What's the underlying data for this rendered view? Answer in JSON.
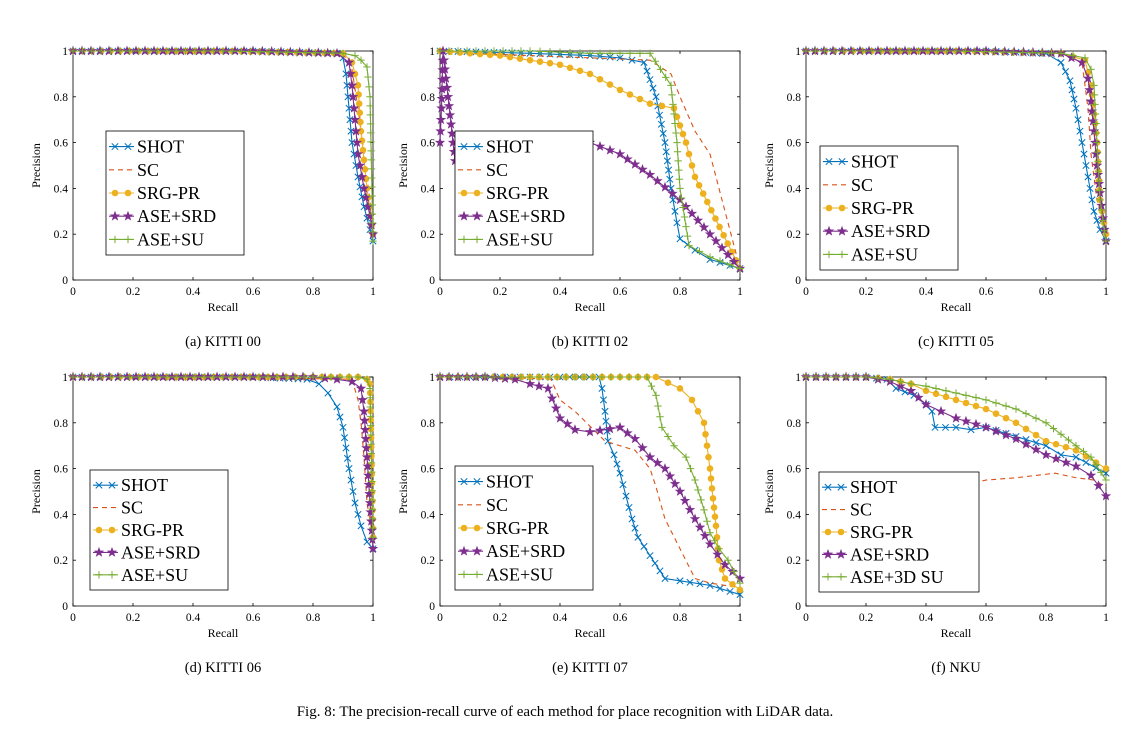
{
  "figure_caption": "Fig. 8: The precision-recall curve of each method for place recognition with LiDAR data.",
  "colors": {
    "SHOT": "#0072BD",
    "SC": "#D95319",
    "SRG-PR": "#EDB120",
    "ASE+SRD": "#7E2F8E",
    "ASE+SU": "#77AC30"
  },
  "chart_data": [
    {
      "type": "line",
      "caption": "(a) KITTI 00",
      "xlabel": "Recall",
      "ylabel": "Precision",
      "xlim": [
        0,
        1
      ],
      "ylim": [
        0,
        1
      ],
      "xticks": [
        "0",
        "0.2",
        "0.4",
        "0.6",
        "0.8",
        "1"
      ],
      "yticks": [
        "0",
        "0.2",
        "0.4",
        "0.6",
        "0.8",
        "1"
      ],
      "legend_position": "center-left",
      "series": [
        {
          "name": "SHOT",
          "marker": "x",
          "line": "solid",
          "x": [
            0.0,
            0.3,
            0.6,
            0.88,
            0.9,
            0.91,
            0.92,
            0.93,
            0.95,
            0.97,
            0.99,
            1.0
          ],
          "y": [
            1.0,
            1.0,
            1.0,
            0.99,
            0.97,
            0.9,
            0.75,
            0.6,
            0.45,
            0.32,
            0.22,
            0.17
          ]
        },
        {
          "name": "SC",
          "marker": "none",
          "line": "dashed",
          "x": [
            0.0,
            0.5,
            0.9,
            0.93,
            0.95,
            0.97,
            0.99,
            1.0
          ],
          "y": [
            1.0,
            1.0,
            0.99,
            0.92,
            0.75,
            0.55,
            0.35,
            0.17
          ]
        },
        {
          "name": "SRG-PR",
          "marker": "o",
          "line": "solid",
          "x": [
            0.0,
            0.5,
            0.9,
            0.93,
            0.95,
            0.96,
            0.98,
            1.0
          ],
          "y": [
            1.0,
            1.0,
            0.99,
            0.95,
            0.85,
            0.65,
            0.4,
            0.2
          ]
        },
        {
          "name": "ASE+SRD",
          "marker": "star",
          "line": "solid",
          "x": [
            0.0,
            0.3,
            0.6,
            0.88,
            0.92,
            0.93,
            0.94,
            0.95,
            0.97,
            0.99,
            1.0
          ],
          "y": [
            1.0,
            1.0,
            1.0,
            0.99,
            0.95,
            0.85,
            0.7,
            0.55,
            0.4,
            0.28,
            0.2
          ]
        },
        {
          "name": "ASE+SU",
          "marker": "plus",
          "line": "solid",
          "x": [
            0.0,
            0.5,
            0.9,
            0.94,
            0.96,
            0.98,
            0.99,
            1.0
          ],
          "y": [
            1.0,
            1.0,
            0.99,
            0.98,
            0.96,
            0.93,
            0.8,
            0.17
          ]
        }
      ]
    },
    {
      "type": "line",
      "caption": "(b) KITTI 02",
      "xlabel": "Recall",
      "ylabel": "Precision",
      "xlim": [
        0,
        1
      ],
      "ylim": [
        0,
        1
      ],
      "xticks": [
        "0",
        "0.2",
        "0.4",
        "0.6",
        "0.8",
        "1"
      ],
      "yticks": [
        "0",
        "0.2",
        "0.4",
        "0.6",
        "0.8",
        "1"
      ],
      "legend_position": "center-left",
      "series": [
        {
          "name": "SHOT",
          "marker": "x",
          "line": "solid",
          "x": [
            0.0,
            0.3,
            0.5,
            0.6,
            0.68,
            0.72,
            0.75,
            0.77,
            0.79,
            0.8,
            0.85,
            0.9,
            1.0
          ],
          "y": [
            1.0,
            0.99,
            0.98,
            0.97,
            0.95,
            0.8,
            0.6,
            0.4,
            0.25,
            0.18,
            0.13,
            0.09,
            0.05
          ]
        },
        {
          "name": "SC",
          "marker": "none",
          "line": "dashed",
          "x": [
            0.0,
            0.1,
            0.3,
            0.5,
            0.7,
            0.77,
            0.8,
            0.85,
            0.9,
            0.95,
            1.0
          ],
          "y": [
            1.0,
            0.99,
            0.98,
            0.97,
            0.96,
            0.9,
            0.8,
            0.65,
            0.55,
            0.3,
            0.05
          ]
        },
        {
          "name": "SRG-PR",
          "marker": "o",
          "line": "solid",
          "x": [
            0.0,
            0.1,
            0.2,
            0.3,
            0.4,
            0.5,
            0.6,
            0.7,
            0.78,
            0.82,
            0.85,
            1.0
          ],
          "y": [
            1.0,
            0.99,
            0.98,
            0.96,
            0.94,
            0.9,
            0.83,
            0.77,
            0.75,
            0.6,
            0.45,
            0.05
          ]
        },
        {
          "name": "ASE+SRD",
          "marker": "star",
          "line": "solid",
          "x": [
            0.0,
            0.005,
            0.01,
            0.05,
            0.2,
            0.4,
            0.5,
            0.6,
            0.7,
            0.8,
            0.9,
            1.0
          ],
          "y": [
            0.6,
            0.75,
            1.0,
            0.52,
            0.58,
            0.6,
            0.6,
            0.55,
            0.46,
            0.35,
            0.2,
            0.05
          ]
        },
        {
          "name": "ASE+SU",
          "marker": "plus",
          "line": "solid",
          "x": [
            0.0,
            0.3,
            0.5,
            0.7,
            0.77,
            0.79,
            0.8,
            0.83,
            0.9,
            1.0
          ],
          "y": [
            1.0,
            1.0,
            0.99,
            0.99,
            0.85,
            0.6,
            0.4,
            0.15,
            0.1,
            0.05
          ]
        }
      ]
    },
    {
      "type": "line",
      "caption": "(c) KITTI 05",
      "xlabel": "Recall",
      "ylabel": "Precision",
      "xlim": [
        0,
        1
      ],
      "ylim": [
        0,
        1
      ],
      "xticks": [
        "0",
        "0.2",
        "0.4",
        "0.6",
        "0.8",
        "1"
      ],
      "yticks": [
        "0",
        "0.2",
        "0.4",
        "0.6",
        "0.8",
        "1"
      ],
      "legend_position": "center-left",
      "series": [
        {
          "name": "SHOT",
          "marker": "x",
          "line": "solid",
          "x": [
            0.0,
            0.3,
            0.6,
            0.8,
            0.85,
            0.88,
            0.9,
            0.92,
            0.94,
            0.96,
            0.98,
            1.0
          ],
          "y": [
            1.0,
            1.0,
            1.0,
            0.99,
            0.95,
            0.87,
            0.75,
            0.6,
            0.45,
            0.3,
            0.22,
            0.17
          ]
        },
        {
          "name": "SC",
          "marker": "none",
          "line": "dashed",
          "x": [
            0.0,
            0.5,
            0.85,
            0.92,
            0.94,
            0.95,
            0.97,
            1.0
          ],
          "y": [
            1.0,
            1.0,
            0.99,
            0.95,
            0.75,
            0.55,
            0.35,
            0.2
          ]
        },
        {
          "name": "SRG-PR",
          "marker": "o",
          "line": "solid",
          "x": [
            0.0,
            0.5,
            0.85,
            0.93,
            0.95,
            0.97,
            0.98,
            1.0
          ],
          "y": [
            1.0,
            1.0,
            0.99,
            0.96,
            0.85,
            0.6,
            0.35,
            0.2
          ]
        },
        {
          "name": "ASE+SRD",
          "marker": "star",
          "line": "solid",
          "x": [
            0.0,
            0.3,
            0.6,
            0.85,
            0.92,
            0.94,
            0.95,
            0.96,
            0.97,
            0.98,
            0.99,
            1.0
          ],
          "y": [
            1.0,
            1.0,
            1.0,
            0.99,
            0.95,
            0.88,
            0.78,
            0.65,
            0.5,
            0.38,
            0.27,
            0.17
          ]
        },
        {
          "name": "ASE+SU",
          "marker": "plus",
          "line": "solid",
          "x": [
            0.0,
            0.5,
            0.85,
            0.93,
            0.95,
            0.96,
            0.97,
            0.98,
            1.0
          ],
          "y": [
            1.0,
            1.0,
            0.99,
            0.97,
            0.92,
            0.85,
            0.6,
            0.35,
            0.17
          ]
        }
      ]
    },
    {
      "type": "line",
      "caption": "(d) KITTI 06",
      "xlabel": "Recall",
      "ylabel": "Precision",
      "xlim": [
        0,
        1
      ],
      "ylim": [
        0,
        1
      ],
      "xticks": [
        "0",
        "0.2",
        "0.4",
        "0.6",
        "0.8",
        "1"
      ],
      "yticks": [
        "0",
        "0.2",
        "0.4",
        "0.6",
        "0.8",
        "1"
      ],
      "legend_position": "bottom-left",
      "series": [
        {
          "name": "SHOT",
          "marker": "x",
          "line": "solid",
          "x": [
            0.0,
            0.3,
            0.6,
            0.78,
            0.82,
            0.85,
            0.88,
            0.9,
            0.92,
            0.94,
            0.96,
            0.98,
            1.0
          ],
          "y": [
            1.0,
            1.0,
            1.0,
            0.99,
            0.97,
            0.93,
            0.87,
            0.78,
            0.6,
            0.45,
            0.35,
            0.28,
            0.25
          ]
        },
        {
          "name": "SC",
          "marker": "none",
          "line": "dashed",
          "x": [
            0.0,
            0.5,
            0.93,
            0.95,
            0.96,
            0.97,
            0.98,
            1.0
          ],
          "y": [
            1.0,
            1.0,
            0.99,
            0.9,
            0.8,
            0.65,
            0.45,
            0.3
          ]
        },
        {
          "name": "SRG-PR",
          "marker": "o",
          "line": "solid",
          "x": [
            0.0,
            0.5,
            0.95,
            0.98,
            0.99,
            1.0
          ],
          "y": [
            1.0,
            1.0,
            1.0,
            0.99,
            0.97,
            0.3
          ]
        },
        {
          "name": "ASE+SRD",
          "marker": "star",
          "line": "solid",
          "x": [
            0.0,
            0.3,
            0.6,
            0.8,
            0.88,
            0.93,
            0.96,
            0.97,
            0.98,
            0.99,
            1.0
          ],
          "y": [
            1.0,
            1.0,
            1.0,
            1.0,
            0.99,
            0.98,
            0.95,
            0.85,
            0.65,
            0.45,
            0.25
          ]
        },
        {
          "name": "ASE+SU",
          "marker": "plus",
          "line": "solid",
          "x": [
            0.0,
            0.5,
            0.95,
            0.98,
            0.99,
            1.0
          ],
          "y": [
            1.0,
            1.0,
            1.0,
            0.99,
            0.95,
            0.3
          ]
        }
      ]
    },
    {
      "type": "line",
      "caption": "(e) KITTI 07",
      "xlabel": "Recall",
      "ylabel": "Precision",
      "xlim": [
        0,
        1
      ],
      "ylim": [
        0,
        1
      ],
      "xticks": [
        "0",
        "0.2",
        "0.4",
        "0.6",
        "0.8",
        "1"
      ],
      "yticks": [
        "0",
        "0.2",
        "0.4",
        "0.6",
        "0.8",
        "1"
      ],
      "legend_position": "bottom-left",
      "series": [
        {
          "name": "SHOT",
          "marker": "x",
          "line": "solid",
          "x": [
            0.0,
            0.2,
            0.4,
            0.53,
            0.54,
            0.55,
            0.56,
            0.58,
            0.6,
            0.62,
            0.64,
            0.66,
            0.7,
            0.75,
            0.8,
            0.9,
            1.0
          ],
          "y": [
            1.0,
            1.0,
            1.0,
            1.0,
            0.95,
            0.85,
            0.72,
            0.66,
            0.58,
            0.48,
            0.38,
            0.3,
            0.22,
            0.12,
            0.11,
            0.09,
            0.05
          ]
        },
        {
          "name": "SC",
          "marker": "none",
          "line": "dashed",
          "x": [
            0.0,
            0.2,
            0.37,
            0.4,
            0.45,
            0.55,
            0.65,
            0.7,
            0.72,
            0.75,
            0.8,
            0.85,
            0.9,
            1.0
          ],
          "y": [
            1.0,
            1.0,
            0.99,
            0.9,
            0.85,
            0.72,
            0.68,
            0.6,
            0.52,
            0.38,
            0.25,
            0.12,
            0.1,
            0.08
          ]
        },
        {
          "name": "SRG-PR",
          "marker": "o",
          "line": "solid",
          "x": [
            0.0,
            0.3,
            0.6,
            0.72,
            0.8,
            0.84,
            0.86,
            0.88,
            0.89,
            0.9,
            0.91,
            0.92,
            0.93,
            0.95,
            1.0
          ],
          "y": [
            1.0,
            1.0,
            1.0,
            1.0,
            0.95,
            0.9,
            0.85,
            0.8,
            0.7,
            0.6,
            0.47,
            0.35,
            0.2,
            0.12,
            0.07
          ]
        },
        {
          "name": "ASE+SRD",
          "marker": "star",
          "line": "solid",
          "x": [
            0.0,
            0.15,
            0.25,
            0.3,
            0.36,
            0.4,
            0.45,
            0.5,
            0.6,
            0.65,
            0.7,
            0.75,
            0.8,
            0.85,
            0.9,
            0.95,
            1.0
          ],
          "y": [
            1.0,
            1.0,
            0.99,
            0.97,
            0.95,
            0.82,
            0.77,
            0.76,
            0.78,
            0.73,
            0.65,
            0.6,
            0.5,
            0.38,
            0.27,
            0.18,
            0.12
          ]
        },
        {
          "name": "ASE+SU",
          "marker": "plus",
          "line": "solid",
          "x": [
            0.0,
            0.3,
            0.6,
            0.69,
            0.72,
            0.74,
            0.78,
            0.82,
            0.85,
            0.88,
            0.9,
            0.93,
            0.96,
            1.0
          ],
          "y": [
            1.0,
            1.0,
            1.0,
            1.0,
            0.92,
            0.78,
            0.7,
            0.65,
            0.55,
            0.42,
            0.32,
            0.25,
            0.2,
            0.1
          ]
        }
      ]
    },
    {
      "type": "line",
      "caption": "(f) NKU",
      "xlabel": "Recall",
      "ylabel": "Precision",
      "xlim": [
        0,
        1
      ],
      "ylim": [
        0,
        1
      ],
      "xticks": [
        "0",
        "0.2",
        "0.4",
        "0.6",
        "0.8",
        "1"
      ],
      "yticks": [
        "0",
        "0.2",
        "0.4",
        "0.6",
        "0.8",
        "1"
      ],
      "legend_position": "bottom-left",
      "series": [
        {
          "name": "SHOT",
          "marker": "x",
          "line": "solid",
          "x": [
            0.0,
            0.2,
            0.27,
            0.3,
            0.36,
            0.4,
            0.42,
            0.43,
            0.5,
            0.55,
            0.6,
            0.7,
            0.8,
            0.85,
            0.9,
            1.0
          ],
          "y": [
            1.0,
            1.0,
            0.99,
            0.95,
            0.92,
            0.88,
            0.85,
            0.78,
            0.78,
            0.77,
            0.78,
            0.74,
            0.7,
            0.66,
            0.65,
            0.58
          ]
        },
        {
          "name": "SC",
          "marker": "none",
          "line": "dashed",
          "x": [
            0.5,
            0.6,
            0.7,
            0.83,
            0.9,
            0.96,
            1.0
          ],
          "y": [
            0.52,
            0.55,
            0.56,
            0.58,
            0.56,
            0.55,
            0.52
          ]
        },
        {
          "name": "SRG-PR",
          "marker": "o",
          "line": "solid",
          "x": [
            0.0,
            0.2,
            0.28,
            0.35,
            0.4,
            0.5,
            0.6,
            0.7,
            0.8,
            0.9,
            1.0
          ],
          "y": [
            1.0,
            1.0,
            0.99,
            0.97,
            0.94,
            0.9,
            0.86,
            0.8,
            0.72,
            0.68,
            0.6
          ]
        },
        {
          "name": "ASE+SRD",
          "marker": "star",
          "line": "solid",
          "x": [
            0.0,
            0.2,
            0.28,
            0.35,
            0.4,
            0.45,
            0.5,
            0.6,
            0.7,
            0.8,
            0.9,
            0.95,
            1.0
          ],
          "y": [
            1.0,
            1.0,
            0.98,
            0.94,
            0.88,
            0.85,
            0.82,
            0.78,
            0.73,
            0.66,
            0.61,
            0.57,
            0.48
          ]
        },
        {
          "name": "ASE+3D SU",
          "marker": "plus",
          "line": "solid",
          "x": [
            0.0,
            0.2,
            0.28,
            0.35,
            0.4,
            0.5,
            0.6,
            0.7,
            0.8,
            0.9,
            0.95,
            1.0
          ],
          "y": [
            1.0,
            1.0,
            0.99,
            0.97,
            0.96,
            0.93,
            0.9,
            0.86,
            0.8,
            0.7,
            0.65,
            0.55
          ]
        }
      ]
    }
  ]
}
